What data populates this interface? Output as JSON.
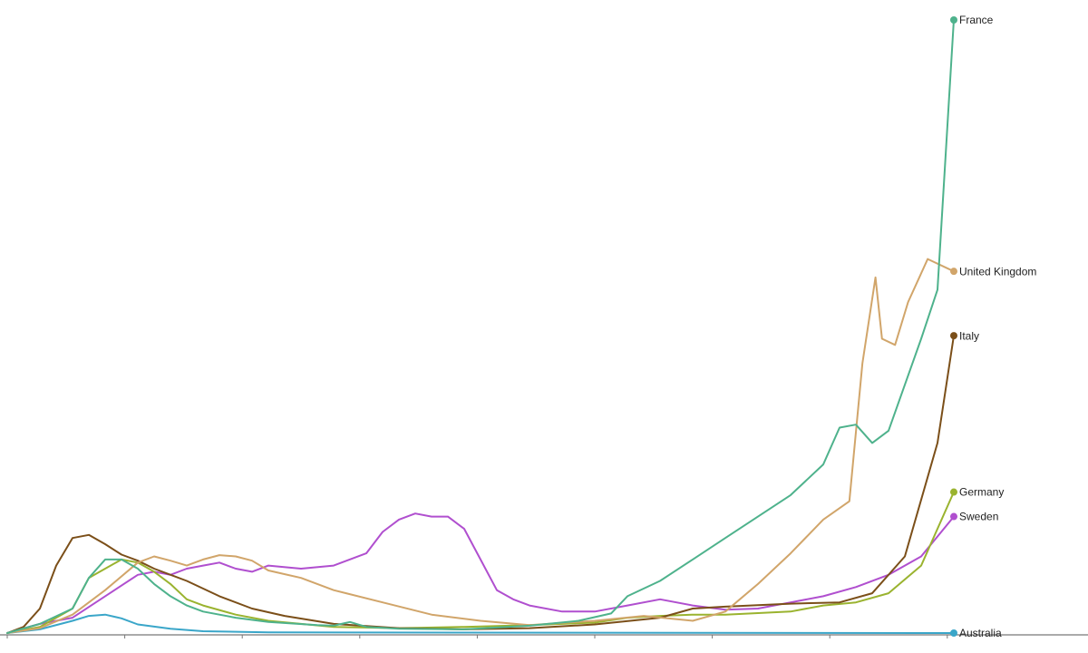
{
  "chart_data": {
    "type": "line",
    "title": "",
    "xlabel": "",
    "ylabel": "",
    "grid": false,
    "legend": "direct labels at line ends",
    "x": {
      "min": 0,
      "max": 290
    },
    "ylim": [
      0,
      1000
    ],
    "series": [
      {
        "name": "Australia",
        "color": "#3aa6c9",
        "points": [
          [
            0,
            0
          ],
          [
            10,
            6
          ],
          [
            20,
            20
          ],
          [
            25,
            28
          ],
          [
            30,
            30
          ],
          [
            35,
            24
          ],
          [
            40,
            14
          ],
          [
            50,
            7
          ],
          [
            60,
            3
          ],
          [
            80,
            1
          ],
          [
            290,
            0
          ]
        ]
      },
      {
        "name": "Sweden",
        "color": "#b04fcf",
        "points": [
          [
            0,
            0
          ],
          [
            10,
            15
          ],
          [
            20,
            25
          ],
          [
            30,
            60
          ],
          [
            40,
            95
          ],
          [
            45,
            100
          ],
          [
            50,
            95
          ],
          [
            55,
            105
          ],
          [
            60,
            110
          ],
          [
            65,
            115
          ],
          [
            70,
            105
          ],
          [
            75,
            100
          ],
          [
            80,
            110
          ],
          [
            90,
            105
          ],
          [
            100,
            110
          ],
          [
            110,
            130
          ],
          [
            115,
            165
          ],
          [
            120,
            185
          ],
          [
            125,
            195
          ],
          [
            130,
            190
          ],
          [
            135,
            190
          ],
          [
            140,
            170
          ],
          [
            145,
            120
          ],
          [
            150,
            70
          ],
          [
            155,
            55
          ],
          [
            160,
            45
          ],
          [
            170,
            35
          ],
          [
            180,
            35
          ],
          [
            190,
            45
          ],
          [
            200,
            55
          ],
          [
            210,
            45
          ],
          [
            220,
            38
          ],
          [
            230,
            40
          ],
          [
            240,
            50
          ],
          [
            250,
            60
          ],
          [
            260,
            75
          ],
          [
            270,
            95
          ],
          [
            280,
            125
          ],
          [
            290,
            190
          ]
        ]
      },
      {
        "name": "Germany",
        "color": "#9ab32f",
        "points": [
          [
            0,
            0
          ],
          [
            10,
            10
          ],
          [
            20,
            40
          ],
          [
            25,
            90
          ],
          [
            30,
            105
          ],
          [
            35,
            120
          ],
          [
            40,
            115
          ],
          [
            45,
            100
          ],
          [
            50,
            80
          ],
          [
            55,
            55
          ],
          [
            60,
            45
          ],
          [
            70,
            30
          ],
          [
            80,
            20
          ],
          [
            90,
            15
          ],
          [
            100,
            10
          ],
          [
            120,
            8
          ],
          [
            140,
            10
          ],
          [
            160,
            13
          ],
          [
            180,
            17
          ],
          [
            190,
            25
          ],
          [
            200,
            28
          ],
          [
            210,
            30
          ],
          [
            220,
            30
          ],
          [
            240,
            35
          ],
          [
            250,
            45
          ],
          [
            260,
            50
          ],
          [
            270,
            65
          ],
          [
            280,
            110
          ],
          [
            290,
            230
          ]
        ]
      },
      {
        "name": "Italy",
        "color": "#7b4f19",
        "points": [
          [
            0,
            0
          ],
          [
            5,
            10
          ],
          [
            10,
            40
          ],
          [
            15,
            110
          ],
          [
            20,
            155
          ],
          [
            25,
            160
          ],
          [
            30,
            145
          ],
          [
            35,
            128
          ],
          [
            40,
            118
          ],
          [
            45,
            105
          ],
          [
            55,
            85
          ],
          [
            65,
            60
          ],
          [
            75,
            40
          ],
          [
            85,
            28
          ],
          [
            100,
            15
          ],
          [
            120,
            8
          ],
          [
            140,
            6
          ],
          [
            160,
            8
          ],
          [
            180,
            14
          ],
          [
            200,
            25
          ],
          [
            210,
            40
          ],
          [
            220,
            43
          ],
          [
            240,
            48
          ],
          [
            255,
            50
          ],
          [
            265,
            65
          ],
          [
            275,
            125
          ],
          [
            285,
            310
          ],
          [
            290,
            485
          ]
        ]
      },
      {
        "name": "United Kingdom",
        "color": "#d1a56a",
        "points": [
          [
            0,
            0
          ],
          [
            10,
            8
          ],
          [
            20,
            30
          ],
          [
            30,
            70
          ],
          [
            40,
            115
          ],
          [
            45,
            125
          ],
          [
            50,
            118
          ],
          [
            55,
            110
          ],
          [
            60,
            120
          ],
          [
            65,
            127
          ],
          [
            70,
            125
          ],
          [
            75,
            118
          ],
          [
            80,
            102
          ],
          [
            90,
            90
          ],
          [
            100,
            70
          ],
          [
            115,
            50
          ],
          [
            130,
            30
          ],
          [
            145,
            20
          ],
          [
            160,
            13
          ],
          [
            180,
            20
          ],
          [
            195,
            28
          ],
          [
            210,
            20
          ],
          [
            220,
            35
          ],
          [
            230,
            80
          ],
          [
            240,
            130
          ],
          [
            250,
            185
          ],
          [
            258,
            215
          ],
          [
            262,
            440
          ],
          [
            266,
            580
          ],
          [
            268,
            480
          ],
          [
            272,
            470
          ],
          [
            276,
            540
          ],
          [
            282,
            610
          ],
          [
            290,
            590
          ]
        ]
      },
      {
        "name": "France",
        "color": "#4eb28c",
        "points": [
          [
            0,
            0
          ],
          [
            10,
            15
          ],
          [
            20,
            40
          ],
          [
            25,
            90
          ],
          [
            30,
            120
          ],
          [
            35,
            120
          ],
          [
            40,
            105
          ],
          [
            45,
            80
          ],
          [
            50,
            60
          ],
          [
            55,
            45
          ],
          [
            60,
            35
          ],
          [
            70,
            25
          ],
          [
            80,
            18
          ],
          [
            95,
            13
          ],
          [
            100,
            12
          ],
          [
            105,
            18
          ],
          [
            110,
            10
          ],
          [
            120,
            7
          ],
          [
            140,
            6
          ],
          [
            160,
            12
          ],
          [
            175,
            20
          ],
          [
            185,
            32
          ],
          [
            190,
            60
          ],
          [
            200,
            85
          ],
          [
            210,
            120
          ],
          [
            220,
            155
          ],
          [
            230,
            190
          ],
          [
            240,
            225
          ],
          [
            250,
            275
          ],
          [
            255,
            335
          ],
          [
            260,
            340
          ],
          [
            265,
            310
          ],
          [
            270,
            330
          ],
          [
            280,
            480
          ],
          [
            285,
            560
          ],
          [
            290,
            1000
          ]
        ]
      }
    ]
  }
}
